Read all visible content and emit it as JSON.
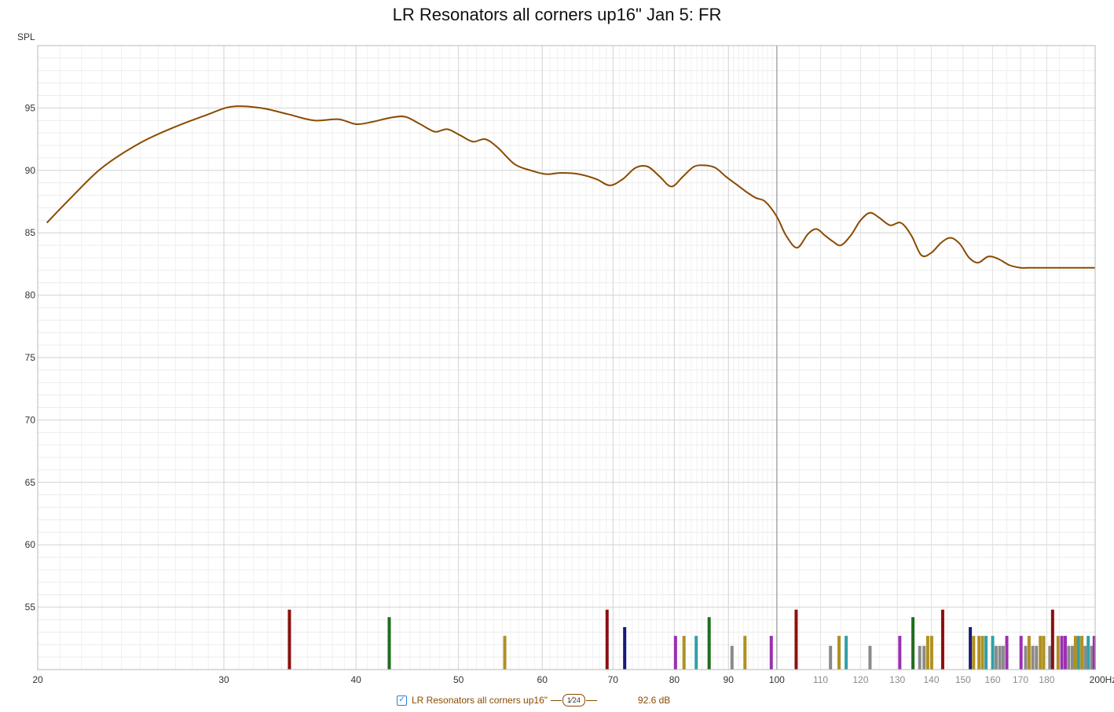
{
  "chart_data": {
    "type": "line",
    "title": "LR Resonators all corners up16\" Jan 5: FR",
    "ylabel": "SPL",
    "x_unit": "Hz",
    "x_scale": "log",
    "xlim": [
      20,
      200
    ],
    "ylim": [
      50,
      100
    ],
    "grid": true,
    "x_ticks": [
      20,
      30,
      40,
      50,
      60,
      70,
      80,
      90,
      100,
      110,
      120,
      130,
      140,
      150,
      160,
      170,
      180,
      200
    ],
    "x_tick_labels": [
      "20",
      "30",
      "40",
      "50",
      "60",
      "70",
      "80",
      "90",
      "100",
      "110",
      "120",
      "130",
      "140",
      "150",
      "160",
      "170",
      "180",
      "200Hz"
    ],
    "y_ticks": [
      55,
      60,
      65,
      70,
      75,
      80,
      85,
      90,
      95
    ],
    "y_tick_labels": [
      "55",
      "60",
      "65",
      "70",
      "75",
      "80",
      "85",
      "90",
      "95"
    ],
    "series": [
      {
        "name": "LR Resonators all corners up16\"",
        "color": "#8a4b00",
        "x": [
          20.4,
          21.5,
          23.0,
          25.0,
          27.0,
          28.8,
          30.5,
          32.5,
          34.5,
          36.5,
          38.5,
          40.0,
          41.5,
          43.0,
          44.5,
          46.0,
          47.5,
          48.8,
          50.2,
          51.6,
          53.0,
          54.5,
          56.5,
          58.5,
          60.5,
          62.5,
          65.0,
          67.5,
          69.5,
          71.5,
          73.5,
          75.5,
          77.5,
          79.5,
          81.5,
          83.5,
          85.5,
          87.5,
          89.5,
          91.5,
          93.5,
          95.5,
          97.5,
          100.0,
          102.0,
          104.5,
          107.0,
          109.0,
          111.0,
          113.0,
          115.0,
          117.5,
          120.0,
          122.5,
          125.0,
          128.0,
          131.0,
          134.0,
          137.0,
          140.0,
          143.0,
          146.0,
          149.0,
          152.0,
          155.0,
          158.5,
          162.0,
          166.0,
          170.0,
          174.0,
          178.0,
          182.0,
          186.0,
          190.0,
          194.0,
          198.0,
          200.0
        ],
        "y": [
          85.8,
          87.8,
          90.2,
          92.2,
          93.5,
          94.4,
          95.1,
          95.0,
          94.5,
          94.0,
          94.1,
          93.7,
          93.9,
          94.2,
          94.3,
          93.7,
          93.1,
          93.3,
          92.8,
          92.3,
          92.5,
          91.8,
          90.5,
          90.0,
          89.7,
          89.8,
          89.7,
          89.3,
          88.8,
          89.3,
          90.2,
          90.3,
          89.5,
          88.7,
          89.5,
          90.3,
          90.4,
          90.2,
          89.5,
          88.9,
          88.3,
          87.8,
          87.5,
          86.3,
          84.8,
          83.8,
          84.9,
          85.3,
          84.8,
          84.3,
          84.0,
          84.8,
          86.0,
          86.6,
          86.2,
          85.6,
          85.8,
          84.8,
          83.2,
          83.4,
          84.2,
          84.6,
          84.1,
          83.0,
          82.6,
          83.1,
          82.9,
          82.4,
          82.2,
          82.2,
          82.2,
          82.2,
          82.2,
          82.2,
          82.2,
          82.2,
          82.2
        ]
      }
    ],
    "resonance_markers": [
      {
        "x": 34.6,
        "top": 54.8,
        "color": "#8b1010"
      },
      {
        "x": 43.0,
        "top": 54.2,
        "color": "#1f6e1f"
      },
      {
        "x": 55.3,
        "top": 52.7,
        "color": "#b09020"
      },
      {
        "x": 69.1,
        "top": 54.8,
        "color": "#8b1010"
      },
      {
        "x": 71.8,
        "top": 53.4,
        "color": "#1a1a7a"
      },
      {
        "x": 80.2,
        "top": 52.7,
        "color": "#9a30b0"
      },
      {
        "x": 81.7,
        "top": 52.7,
        "color": "#b09020"
      },
      {
        "x": 83.9,
        "top": 52.7,
        "color": "#30a0a8"
      },
      {
        "x": 86.3,
        "top": 54.2,
        "color": "#1f6e1f"
      },
      {
        "x": 90.7,
        "top": 51.9,
        "color": "#8a8a8a"
      },
      {
        "x": 93.3,
        "top": 52.7,
        "color": "#b09020"
      },
      {
        "x": 98.8,
        "top": 52.7,
        "color": "#9a30b0"
      },
      {
        "x": 104.3,
        "top": 54.8,
        "color": "#8b1010"
      },
      {
        "x": 112.4,
        "top": 51.9,
        "color": "#8a8a8a"
      },
      {
        "x": 114.5,
        "top": 52.7,
        "color": "#b09020"
      },
      {
        "x": 116.3,
        "top": 52.7,
        "color": "#30a0a8"
      },
      {
        "x": 122.5,
        "top": 51.9,
        "color": "#8a8a8a"
      },
      {
        "x": 130.7,
        "top": 52.7,
        "color": "#9a30b0"
      },
      {
        "x": 134.5,
        "top": 54.2,
        "color": "#1f6e1f"
      },
      {
        "x": 136.5,
        "top": 51.9,
        "color": "#8a8a8a"
      },
      {
        "x": 137.8,
        "top": 51.9,
        "color": "#8a8a8a"
      },
      {
        "x": 138.9,
        "top": 52.7,
        "color": "#b09020"
      },
      {
        "x": 140.1,
        "top": 52.7,
        "color": "#b09020"
      },
      {
        "x": 143.5,
        "top": 54.8,
        "color": "#8b1010"
      },
      {
        "x": 152.4,
        "top": 53.4,
        "color": "#1a1a7a"
      },
      {
        "x": 153.5,
        "top": 52.7,
        "color": "#b09020"
      },
      {
        "x": 155.3,
        "top": 52.7,
        "color": "#b09020"
      },
      {
        "x": 156.5,
        "top": 52.7,
        "color": "#b09020"
      },
      {
        "x": 157.7,
        "top": 52.7,
        "color": "#30a0a8"
      },
      {
        "x": 160.0,
        "top": 52.7,
        "color": "#30a0a8"
      },
      {
        "x": 161.2,
        "top": 51.9,
        "color": "#8a8a8a"
      },
      {
        "x": 162.5,
        "top": 51.9,
        "color": "#8a8a8a"
      },
      {
        "x": 163.7,
        "top": 51.9,
        "color": "#8a8a8a"
      },
      {
        "x": 165.0,
        "top": 52.7,
        "color": "#9a30b0"
      },
      {
        "x": 170.2,
        "top": 52.7,
        "color": "#9a30b0"
      },
      {
        "x": 171.9,
        "top": 51.9,
        "color": "#8a8a8a"
      },
      {
        "x": 173.2,
        "top": 52.7,
        "color": "#b09020"
      },
      {
        "x": 174.6,
        "top": 51.9,
        "color": "#8a8a8a"
      },
      {
        "x": 176.0,
        "top": 51.9,
        "color": "#8a8a8a"
      },
      {
        "x": 177.5,
        "top": 52.7,
        "color": "#b09020"
      },
      {
        "x": 178.8,
        "top": 52.7,
        "color": "#b09020"
      },
      {
        "x": 181.2,
        "top": 51.9,
        "color": "#8a8a8a"
      },
      {
        "x": 182.3,
        "top": 54.8,
        "color": "#8b1010"
      },
      {
        "x": 184.5,
        "top": 52.7,
        "color": "#b09020"
      },
      {
        "x": 186.0,
        "top": 52.7,
        "color": "#9a30b0"
      },
      {
        "x": 187.4,
        "top": 52.7,
        "color": "#9a30b0"
      },
      {
        "x": 188.8,
        "top": 51.9,
        "color": "#8a8a8a"
      },
      {
        "x": 190.3,
        "top": 51.9,
        "color": "#8a8a8a"
      },
      {
        "x": 191.6,
        "top": 52.7,
        "color": "#b09020"
      },
      {
        "x": 192.9,
        "top": 52.7,
        "color": "#30a0a8"
      },
      {
        "x": 194.3,
        "top": 52.7,
        "color": "#b09020"
      },
      {
        "x": 195.7,
        "top": 51.9,
        "color": "#8a8a8a"
      },
      {
        "x": 197.0,
        "top": 52.7,
        "color": "#30a0a8"
      },
      {
        "x": 198.5,
        "top": 51.9,
        "color": "#8a8a8a"
      },
      {
        "x": 199.6,
        "top": 52.7,
        "color": "#9a30b0"
      }
    ]
  },
  "legend": {
    "checkbox_mark": "✓",
    "series_label": "LR Resonators all corners up16\"",
    "smoothing_num": "1",
    "smoothing_den": "24",
    "value": "92.6 dB"
  }
}
